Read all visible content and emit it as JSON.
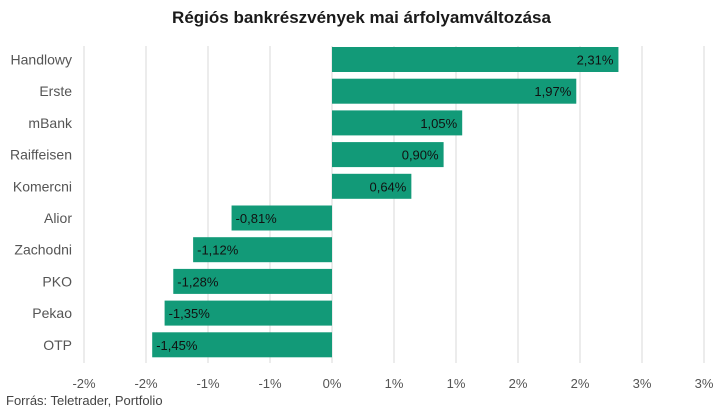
{
  "chart_data": {
    "type": "bar",
    "orientation": "horizontal",
    "title": "Régiós bankrészvények mai árfolyamváltozása",
    "source": "Forrás: Teletrader, Portfolio",
    "categories": [
      "Handlowy",
      "Erste",
      "mBank",
      "Raiffeisen",
      "Komercni",
      "Alior",
      "Zachodni",
      "PKO",
      "Pekao",
      "OTP"
    ],
    "values": [
      2.31,
      1.97,
      1.05,
      0.9,
      0.64,
      -0.81,
      -1.12,
      -1.28,
      -1.35,
      -1.45
    ],
    "value_labels": [
      "2,31%",
      "1,97%",
      "1,05%",
      "0,90%",
      "0,64%",
      "-0,81%",
      "-1,12%",
      "-1,28%",
      "-1,35%",
      "-1,45%"
    ],
    "xlim": [
      -2,
      3
    ],
    "xticks": [
      -2,
      -1.5,
      -1,
      -0.5,
      0,
      0.5,
      1,
      1.5,
      2,
      2.5,
      3
    ],
    "xtick_labels": [
      "-2%",
      "-2%",
      "-1%",
      "-1%",
      "0%",
      "1%",
      "1%",
      "2%",
      "2%",
      "3%",
      "3%"
    ],
    "grid": true,
    "bar_color": "#129a78"
  }
}
